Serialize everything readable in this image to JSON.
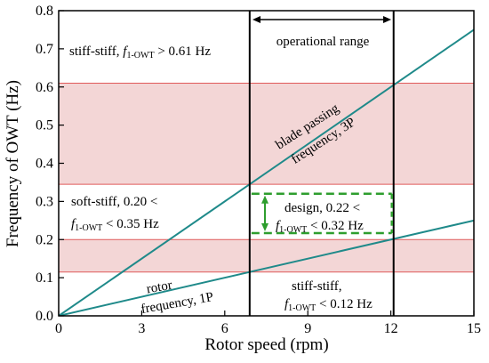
{
  "chart_data": {
    "type": "line",
    "xlabel": "Rotor speed (rpm)",
    "ylabel": "Frequency of OWT (Hz)",
    "xlim": [
      0,
      15
    ],
    "ylim": [
      0,
      0.8
    ],
    "xticks": [
      "0",
      "3",
      "6",
      "9",
      "12",
      "15"
    ],
    "yticks": [
      "0.0",
      "0.1",
      "0.2",
      "0.3",
      "0.4",
      "0.5",
      "0.6",
      "0.7",
      "0.8"
    ],
    "grid": false,
    "colors": {
      "line": "#1f8a8a",
      "band_fill": "#f3d6d6",
      "band_edge": "#e05a5a",
      "design": "#2e9e2e"
    },
    "series": [
      {
        "label_parts": [
          "rotor",
          "frequency, 1P"
        ],
        "x": [
          0,
          15
        ],
        "y": [
          0,
          0.25
        ]
      },
      {
        "label_parts": [
          "blade passing",
          "frequency, 3P"
        ],
        "x": [
          0,
          15
        ],
        "y": [
          0,
          0.75
        ]
      }
    ],
    "bands": [
      {
        "y": [
          0.115,
          0.2
        ]
      },
      {
        "y": [
          0.345,
          0.61
        ]
      }
    ],
    "vlines": [
      6.9,
      12.1
    ],
    "design_box": {
      "y": [
        0.217,
        0.32
      ]
    },
    "annotations": {
      "operational_range": "operational range",
      "stiff_top": {
        "main": "stiff-stiff, ",
        "f": "f",
        "sub": "1-OWT",
        "rest": " > 0.61 Hz"
      },
      "soft_line1": "soft-stiff, 0.20 <",
      "soft_line2": {
        "f": "f",
        "sub": "1-OWT",
        "rest": " < 0.35 Hz"
      },
      "design_line1": "design, 0.22 <",
      "design_line2": {
        "f": "f",
        "sub": "1-OWT",
        "rest": " < 0.32 Hz"
      },
      "stiff_bot_line1": "stiff-stiff,",
      "stiff_bot_line2": {
        "f": "f",
        "sub": "1-OWT",
        "rest": " < 0.12 Hz"
      }
    }
  }
}
